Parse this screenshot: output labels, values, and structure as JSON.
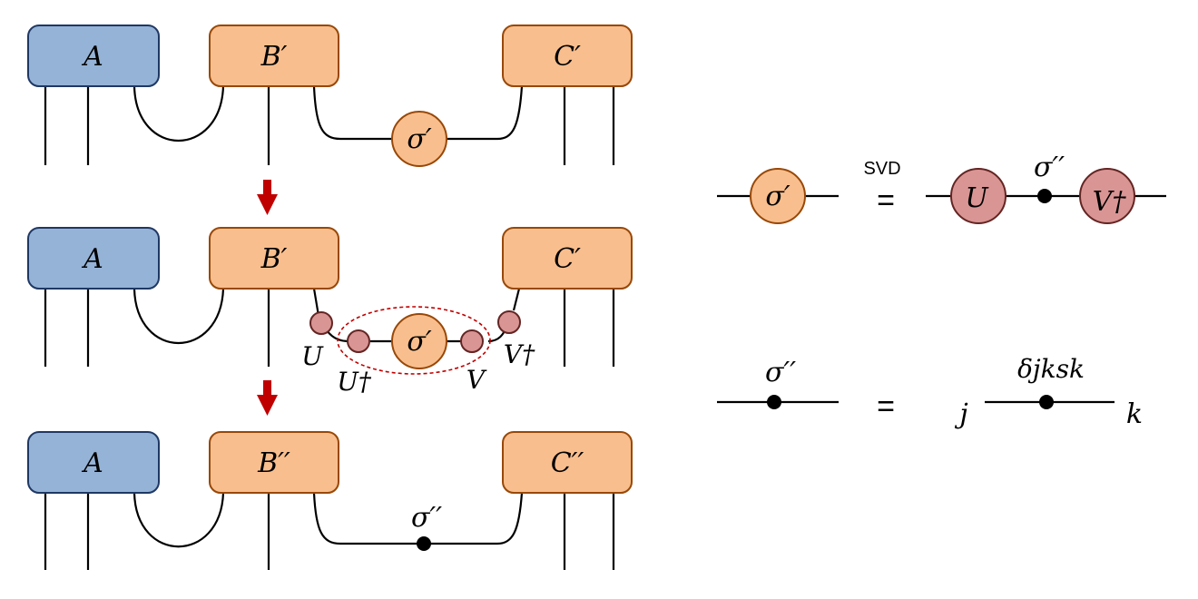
{
  "rows": [
    {
      "tensors": [
        "A",
        "B′",
        "C′"
      ],
      "bond": "σ′"
    },
    {
      "tensors": [
        "A",
        "B′",
        "C′"
      ],
      "bond": "σ′",
      "left_outer": "U",
      "left_inner": "U†",
      "right_inner": "V",
      "right_outer": "V†"
    },
    {
      "tensors": [
        "A",
        "B′′",
        "C′′"
      ],
      "bond": "σ′′"
    }
  ],
  "svd_equation": {
    "lhs": "σ′",
    "operator_label": "SVD",
    "equals": "=",
    "u": "U",
    "sigma": "σ′′",
    "vdag": "V†"
  },
  "delta_equation": {
    "lhs": "σ′′",
    "equals": "=",
    "left_index": "j",
    "value": "δjksk",
    "right_index": "k"
  },
  "colors": {
    "blue_fill": "#95b3d7",
    "orange_fill": "#f9be8d",
    "pink_fill": "#d99594",
    "arrow": "#c00000",
    "dashed_ellipse": "#c00000"
  }
}
